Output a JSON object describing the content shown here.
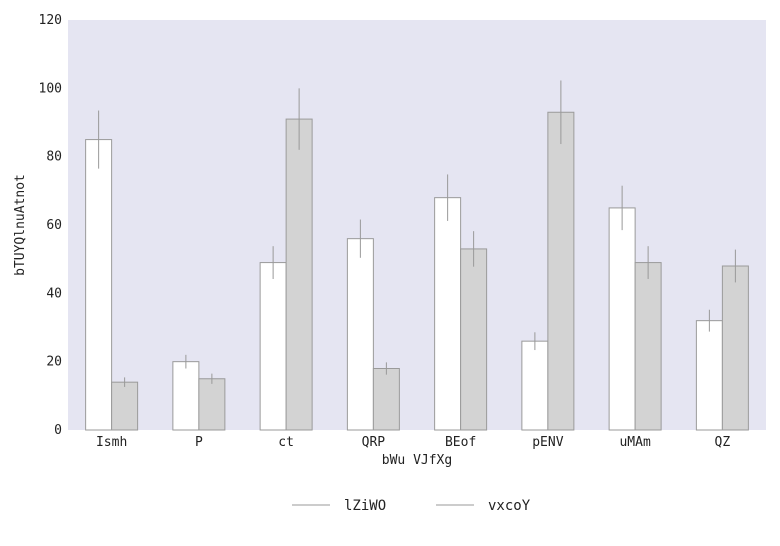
{
  "chart_data": {
    "type": "bar",
    "title": "",
    "xlabel": "bWu VJfXg",
    "ylabel": "bTUYQlnuAtnot",
    "categories": [
      "Ismh",
      "P",
      "ct",
      "QRP",
      "BEof",
      "pENV",
      "uMAm",
      "QZ"
    ],
    "series": [
      {
        "name": "lZiWO",
        "values": [
          85,
          20,
          49,
          56,
          68,
          26,
          65,
          32
        ],
        "errors": [
          8.5,
          2.0,
          4.8,
          5.6,
          6.8,
          2.6,
          6.5,
          3.2
        ],
        "fill": "#ffffff",
        "edge": "#9a9a9a"
      },
      {
        "name": "vxcoY",
        "values": [
          14,
          15,
          91,
          18,
          53,
          93,
          49,
          48
        ],
        "errors": [
          1.4,
          1.5,
          9.0,
          1.8,
          5.2,
          9.3,
          4.8,
          4.8
        ],
        "fill": "#d3d3d3",
        "edge": "#9a9a9a"
      }
    ],
    "ylim": [
      0,
      120
    ],
    "yticks": [
      0,
      20,
      40,
      60,
      80,
      100,
      120
    ],
    "grid": false,
    "legend_position": "bottom-center",
    "colors": {
      "plot_background": "#e5e5f2",
      "error_bar": "#999999"
    }
  }
}
